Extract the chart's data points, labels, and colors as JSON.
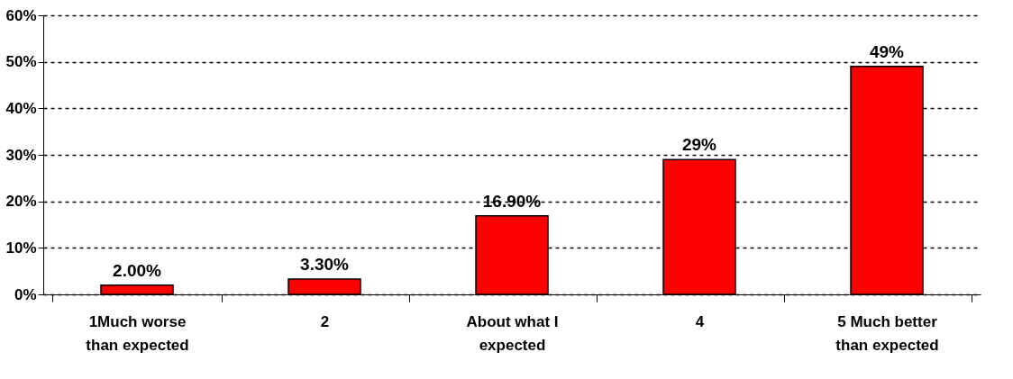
{
  "chart_data": {
    "type": "bar",
    "categories": [
      "1Much worse than expected",
      "2",
      "About what I expected",
      "4",
      "5 Much better than expected"
    ],
    "values": [
      2.0,
      3.3,
      16.9,
      29,
      49
    ],
    "value_labels": [
      "2.00%",
      "3.30%",
      "16.90%",
      "29%",
      "49%"
    ],
    "color": "#ff0000",
    "ylim": [
      0,
      60
    ],
    "yticks": [
      {
        "value": 0,
        "label": "0%"
      },
      {
        "value": 10,
        "label": "10%"
      },
      {
        "value": 20,
        "label": "20%"
      },
      {
        "value": 30,
        "label": "30%"
      },
      {
        "value": 40,
        "label": "40%"
      },
      {
        "value": 50,
        "label": "50%"
      },
      {
        "value": 60,
        "label": "60%"
      }
    ],
    "grid": "y"
  }
}
